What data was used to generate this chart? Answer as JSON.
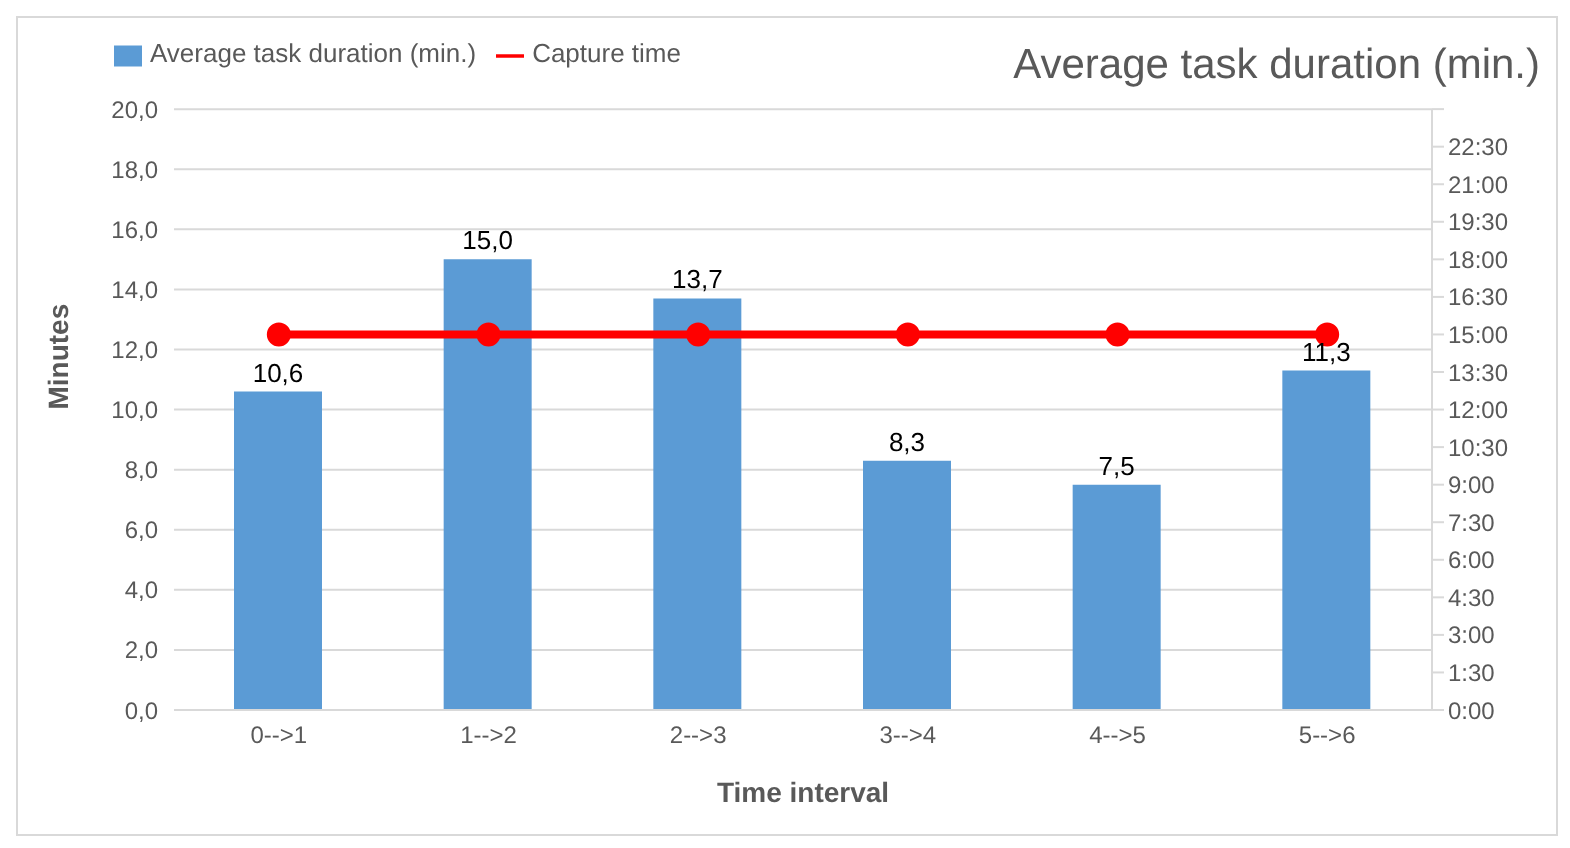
{
  "chart_data": {
    "type": "bar",
    "title": "Average task duration (min.)",
    "xlabel": "Time interval",
    "ylabel": "Minutes",
    "categories": [
      "0-->1",
      "1-->2",
      "2-->3",
      "3-->4",
      "4-->5",
      "5-->6"
    ],
    "series": [
      {
        "name": "Average task duration (min.)",
        "color": "#5b9bd5",
        "values": [
          10.6,
          15.0,
          13.7,
          8.3,
          7.5,
          11.3
        ],
        "value_labels": [
          "10,6",
          "15,0",
          "13,7",
          "8,3",
          "7,5",
          "11,3"
        ]
      },
      {
        "name": "Capture time",
        "type": "line",
        "axis": "y2",
        "color": "#ff0000",
        "marker": "circle",
        "values": [
          15,
          15,
          15,
          15,
          15,
          15
        ]
      }
    ],
    "ylim": [
      0,
      20
    ],
    "yticks": [
      {
        "value": 0,
        "label": "0,0"
      },
      {
        "value": 2,
        "label": "2,0"
      },
      {
        "value": 4,
        "label": "4,0"
      },
      {
        "value": 6,
        "label": "6,0"
      },
      {
        "value": 8,
        "label": "8,0"
      },
      {
        "value": 10,
        "label": "10,0"
      },
      {
        "value": 12,
        "label": "12,0"
      },
      {
        "value": 14,
        "label": "14,0"
      },
      {
        "value": 16,
        "label": "16,0"
      },
      {
        "value": 18,
        "label": "18,0"
      },
      {
        "value": 20,
        "label": "20,0"
      }
    ],
    "y2lim": [
      0,
      24
    ],
    "y2ticks": [
      {
        "value": 0,
        "label": "0:00"
      },
      {
        "value": 1.5,
        "label": "1:30"
      },
      {
        "value": 3,
        "label": "3:00"
      },
      {
        "value": 4.5,
        "label": "4:30"
      },
      {
        "value": 6,
        "label": "6:00"
      },
      {
        "value": 7.5,
        "label": "7:30"
      },
      {
        "value": 9,
        "label": "9:00"
      },
      {
        "value": 10.5,
        "label": "10:30"
      },
      {
        "value": 12,
        "label": "12:00"
      },
      {
        "value": 13.5,
        "label": "13:30"
      },
      {
        "value": 15,
        "label": "15:00"
      },
      {
        "value": 16.5,
        "label": "16:30"
      },
      {
        "value": 18,
        "label": "18:00"
      },
      {
        "value": 19.5,
        "label": "19:30"
      },
      {
        "value": 21,
        "label": "21:00"
      },
      {
        "value": 22.5,
        "label": "22:30"
      },
      {
        "value": 24,
        "label": null
      }
    ],
    "grid": "y",
    "legend": "top left"
  }
}
